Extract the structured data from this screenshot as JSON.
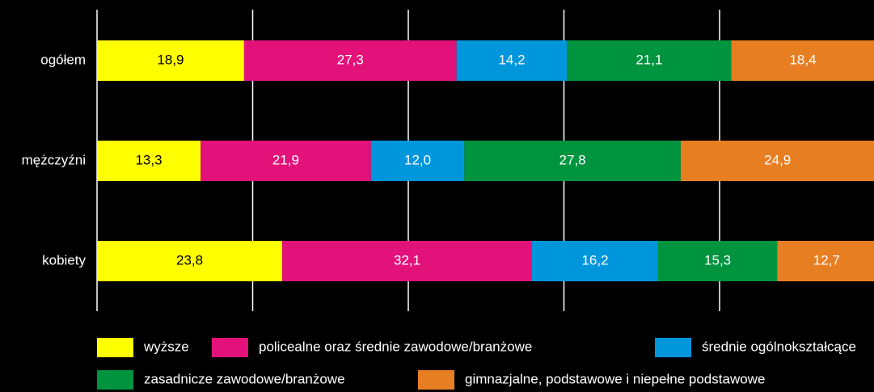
{
  "chart_data": {
    "type": "stacked-bar-horizontal",
    "categories": [
      "ogółem",
      "mężczyźni",
      "kobiety"
    ],
    "series": [
      {
        "name": "wyższe",
        "color": "#ffff00",
        "values": [
          18.9,
          13.3,
          23.8
        ],
        "value_labels": [
          "18,9",
          "13,3",
          "23,8"
        ]
      },
      {
        "name": "policealne oraz średnie zawodowe/branżowe",
        "color": "#e2127a",
        "values": [
          27.3,
          21.9,
          32.1
        ],
        "value_labels": [
          "27,3",
          "21,9",
          "32,1"
        ]
      },
      {
        "name": "średnie ogólnokształcące",
        "color": "#0096db",
        "values": [
          14.2,
          12.0,
          16.2
        ],
        "value_labels": [
          "14,2",
          "12,0",
          "16,2"
        ]
      },
      {
        "name": "zasadnicze zawodowe/branżowe",
        "color": "#00943f",
        "values": [
          21.1,
          27.8,
          15.3
        ],
        "value_labels": [
          "21,1",
          "27,8",
          "15,3"
        ]
      },
      {
        "name": "gimnazjalne, podstawowe i niepełne podstawowe",
        "color": "#e87e22",
        "values": [
          18.4,
          24.9,
          12.7
        ],
        "value_labels": [
          "18,4",
          "24,9",
          "12,7"
        ]
      }
    ],
    "xlim": [
      0,
      100
    ],
    "xticks": [
      0,
      20,
      40,
      60,
      80
    ],
    "grid": true
  }
}
